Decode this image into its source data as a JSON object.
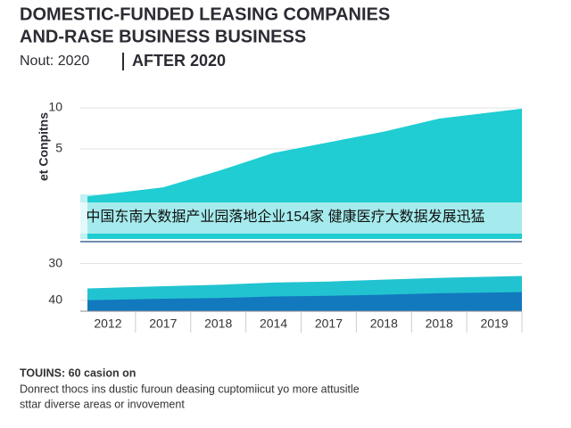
{
  "title_lines": [
    "DOMESTIC-FUNDED LEASING COMPANIES",
    "AND-RASE BUSINESS BUSINESS"
  ],
  "subtitle": "Nout: 2020",
  "subtitle_strong": "AFTER 2020",
  "banner": "中国东南大数据产业园落地企业154家 健康医疗大数据发展迅猛",
  "chart_data": [
    {
      "type": "area",
      "ylabel": "et Conpitns",
      "categories": [
        "2012",
        "2017",
        "2018",
        "2014",
        "2017",
        "2018",
        "2018",
        "2019"
      ],
      "series": [
        {
          "color": "#1fcdd2",
          "values": [
            -0.8,
            0.3,
            2.3,
            4.5,
            5.8,
            7.1,
            8.7,
            9.9
          ]
        }
      ],
      "ylim": [
        -6,
        10
      ],
      "yticks": [
        10,
        5
      ],
      "grid": true
    },
    {
      "type": "area",
      "categories": [
        "2012",
        "2017",
        "2018",
        "2014",
        "2017",
        "2018",
        "2018",
        "2019"
      ],
      "series": [
        {
          "color": "#22c3d0",
          "values": [
            36.8,
            36.2,
            35.8,
            35.2,
            34.9,
            34.4,
            33.9,
            33.4
          ]
        },
        {
          "color": "#1279bf",
          "values": [
            40,
            39.6,
            39.4,
            39,
            38.8,
            38.5,
            38.1,
            37.8
          ]
        }
      ],
      "ylim": [
        25,
        43
      ],
      "inverted": true,
      "yticks": [
        30,
        40
      ],
      "grid": true
    }
  ],
  "footnote": [
    "TOUINS: 60 casion on",
    "Donrect thocs ins dustic furoun deasing cuptomiicut yo more attusitle",
    "sttar diverse areas or invovement"
  ]
}
